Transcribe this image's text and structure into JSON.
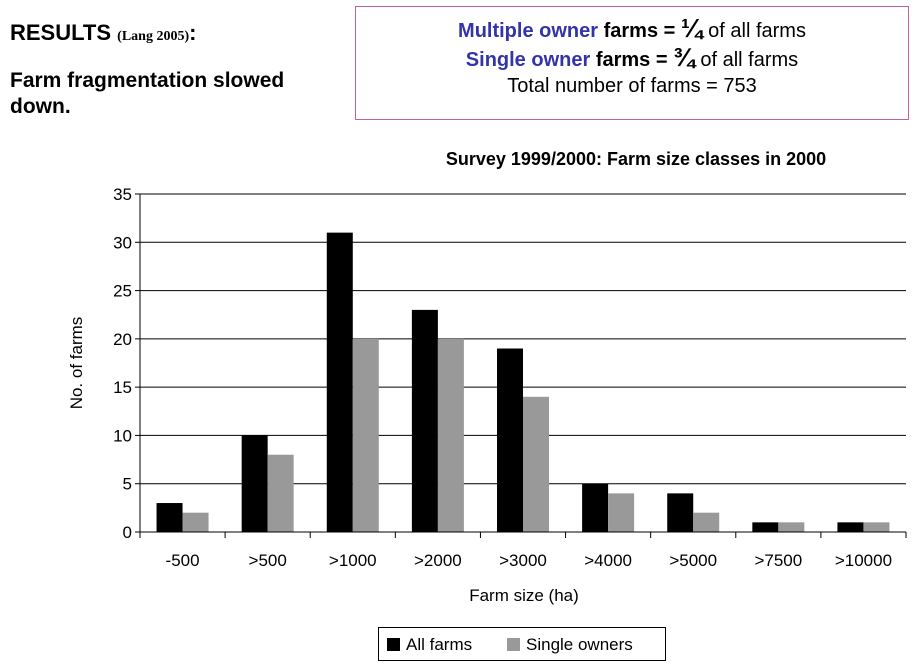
{
  "heading": {
    "title": "RESULTS",
    "citation": "(Lang 2005)",
    "colon": ":"
  },
  "subheading": "Farm fragmentation slowed down.",
  "infobox": {
    "line1_a": "Multiple owner",
    "line1_b": "farms",
    "line1_c": "=",
    "line1_frac": "¼",
    "line1_d": "of all farms",
    "line2_a": "Single owner",
    "line2_b": "farms",
    "line2_c": "=",
    "line2_frac": "¾",
    "line2_d": "of all farms",
    "line3": "Total number of farms = 753"
  },
  "colors": {
    "all_farms": "#000000",
    "single_owners": "#999999",
    "box_border": "#c0609c",
    "highlight": "#3333aa"
  },
  "chart_data": {
    "type": "bar",
    "title": "Survey 1999/2000: Farm size classes in 2000",
    "xlabel": "Farm size (ha)",
    "ylabel": "No. of farms",
    "ylim": [
      0,
      35
    ],
    "yticks": [
      0,
      5,
      10,
      15,
      20,
      25,
      30,
      35
    ],
    "categories": [
      "-500",
      ">500",
      ">1000",
      ">2000",
      ">3000",
      ">4000",
      ">5000",
      ">7500",
      ">10000"
    ],
    "series": [
      {
        "name": "All farms",
        "color": "#000000",
        "values": [
          3,
          10,
          31,
          23,
          19,
          5,
          4,
          1,
          1
        ]
      },
      {
        "name": "Single owners",
        "color": "#999999",
        "values": [
          2,
          8,
          20,
          20,
          14,
          4,
          2,
          1,
          1
        ]
      }
    ],
    "grid": true,
    "legend_position": "bottom"
  }
}
